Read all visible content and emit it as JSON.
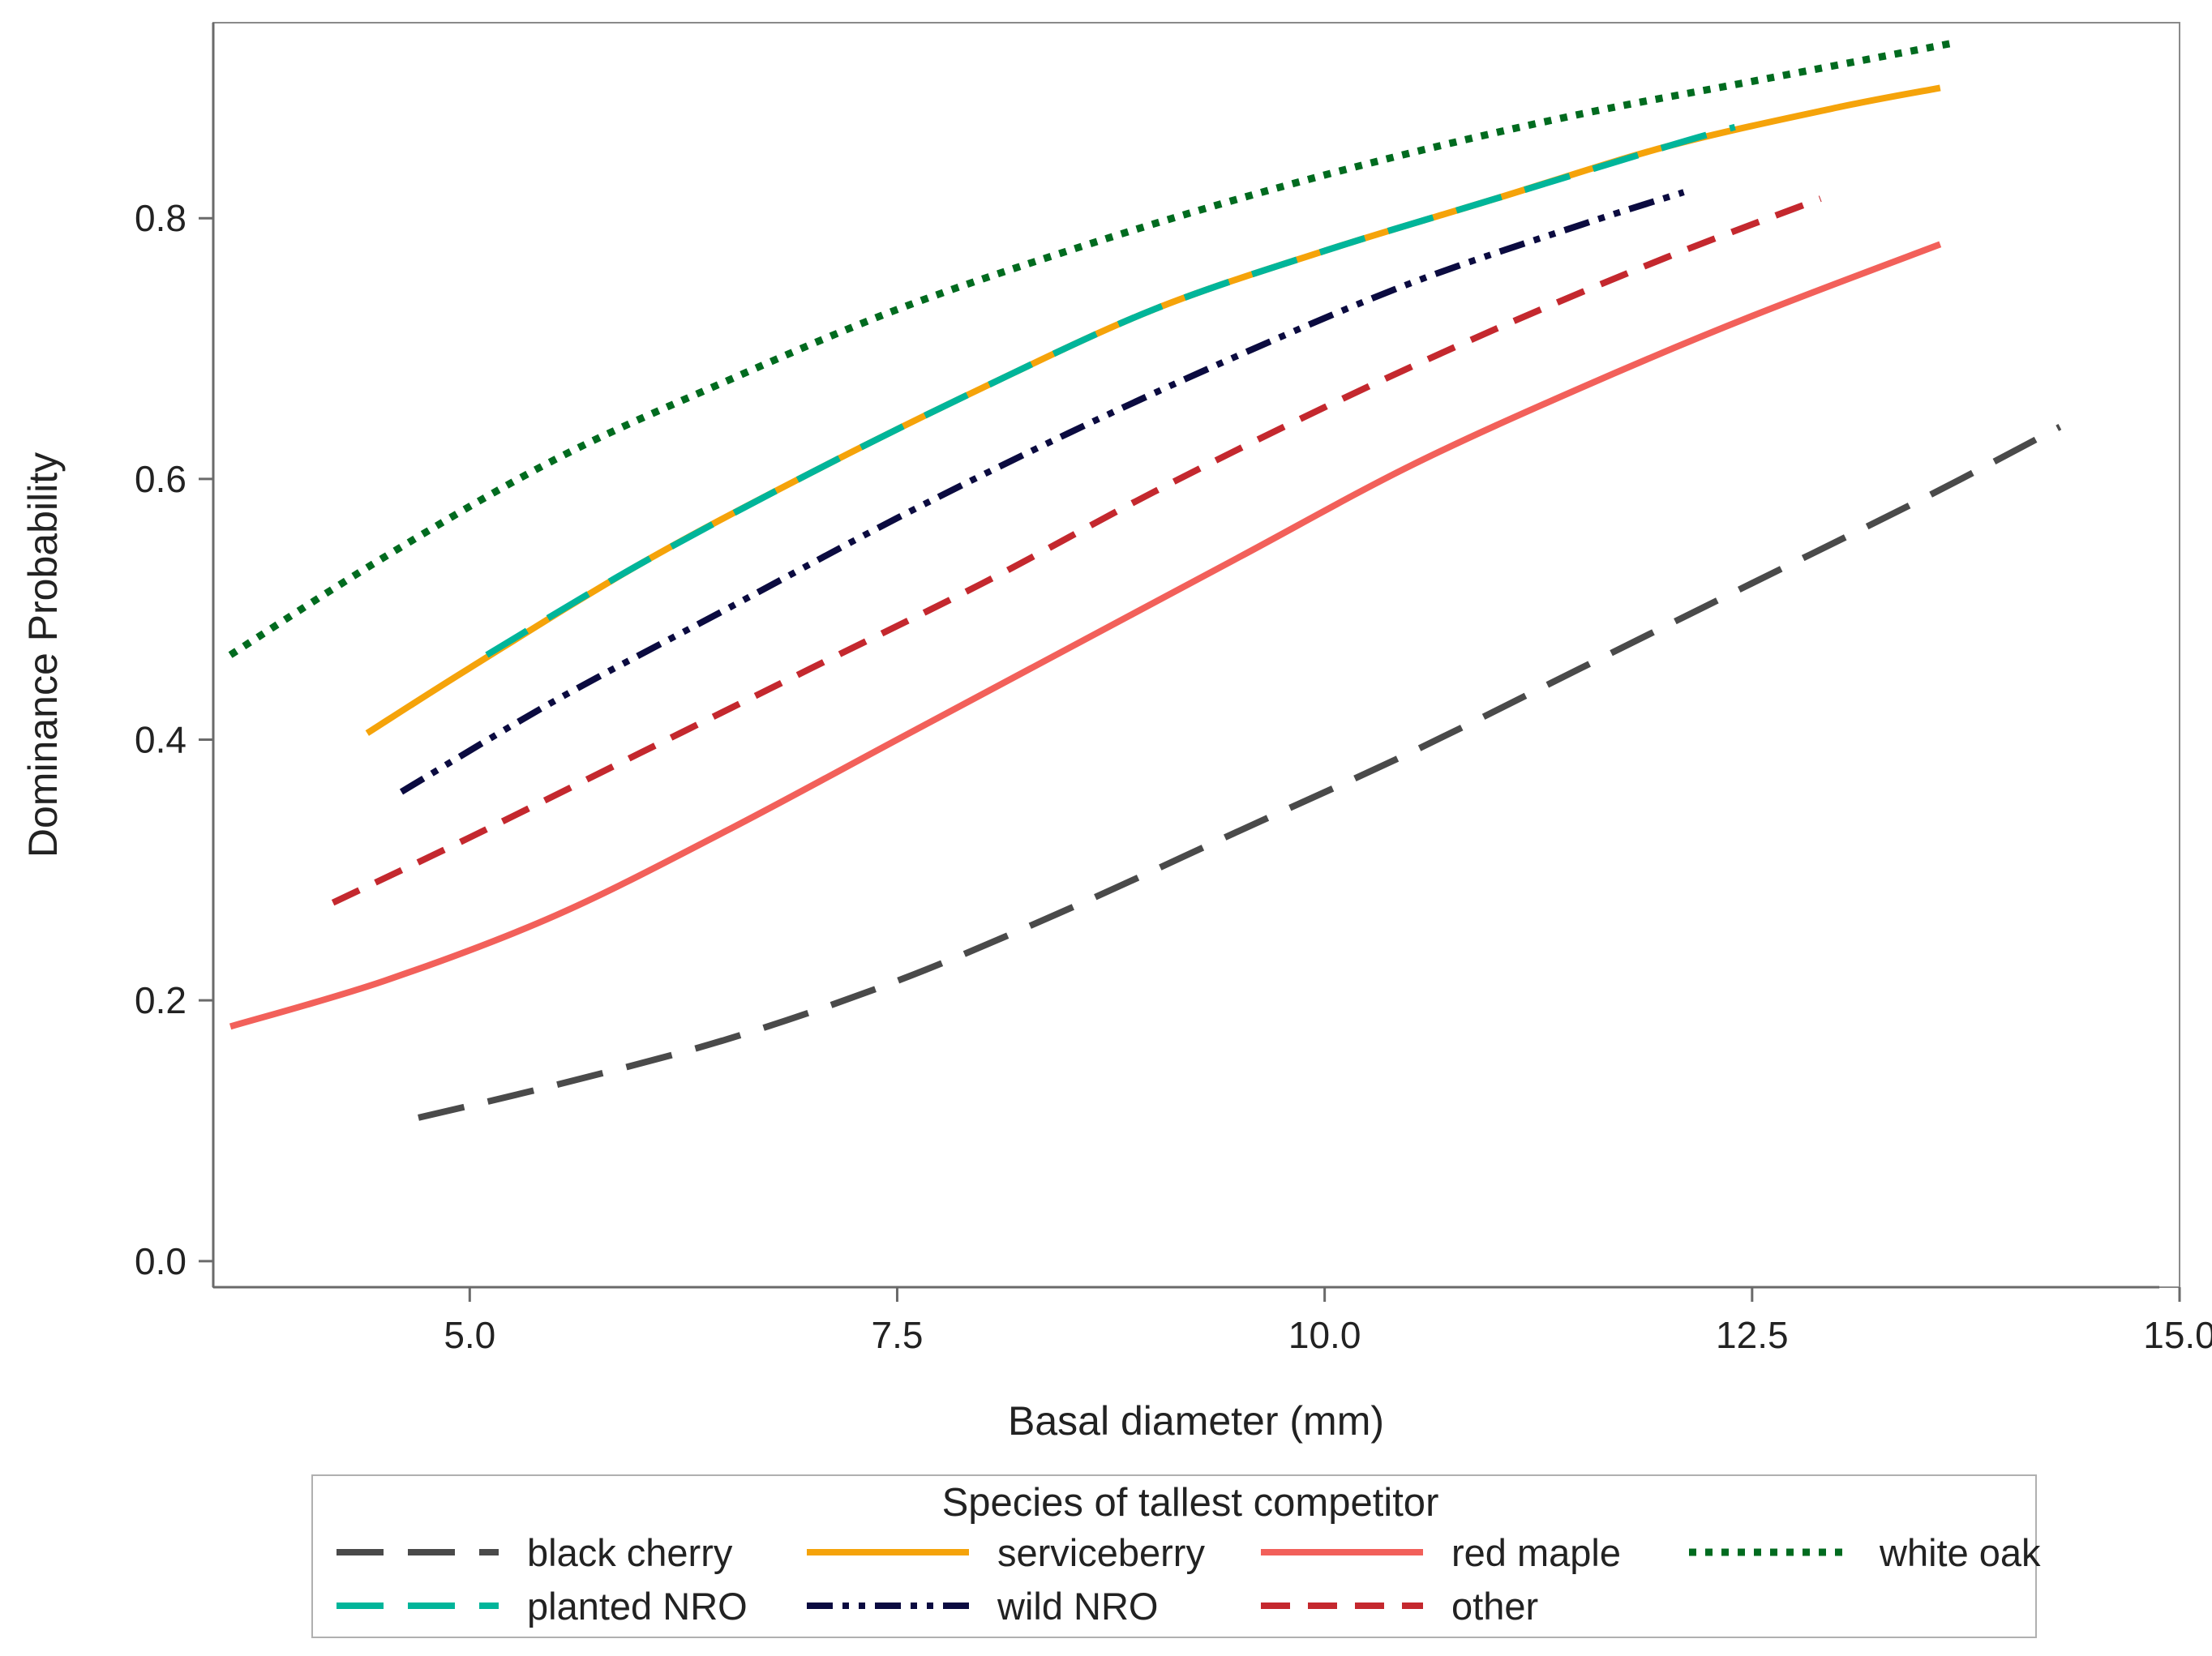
{
  "chart_data": {
    "type": "line",
    "title": "",
    "xlabel": "Basal diameter (mm)",
    "ylabel": "Dominance Probability",
    "xlim": [
      3.5,
      15.0
    ],
    "ylim": [
      -0.02,
      0.95
    ],
    "xticks": [
      5.0,
      7.5,
      10.0,
      12.5,
      15.0
    ],
    "xtick_labels": [
      "5.0",
      "7.5",
      "10.0",
      "12.5",
      "15.0"
    ],
    "yticks": [
      0.0,
      0.2,
      0.4,
      0.6,
      0.8
    ],
    "ytick_labels": [
      "0.0",
      "0.2",
      "0.4",
      "0.6",
      "0.8"
    ],
    "legend": {
      "title": "Species of tallest competitor",
      "placement": "bottom"
    },
    "series": [
      {
        "name": "black cherry",
        "color": "#4a4a4a",
        "dash": "long-dash",
        "x": [
          4.7,
          5.5,
          6.5,
          7.5,
          8.5,
          9.5,
          10.5,
          11.5,
          12.5,
          13.5,
          14.3
        ],
        "y": [
          0.11,
          0.135,
          0.17,
          0.215,
          0.27,
          0.33,
          0.39,
          0.455,
          0.52,
          0.585,
          0.64
        ]
      },
      {
        "name": "serviceberry",
        "color": "#f5a30a",
        "dash": "solid",
        "x": [
          4.4,
          5.0,
          6.0,
          7.0,
          8.0,
          9.0,
          10.0,
          11.0,
          12.0,
          13.0,
          13.6
        ],
        "y": [
          0.405,
          0.455,
          0.535,
          0.605,
          0.67,
          0.73,
          0.775,
          0.815,
          0.855,
          0.885,
          0.9
        ]
      },
      {
        "name": "red maple",
        "color": "#f2605a",
        "dash": "solid",
        "x": [
          3.6,
          4.5,
          5.5,
          6.5,
          7.5,
          8.5,
          9.5,
          10.5,
          11.5,
          12.5,
          13.6
        ],
        "y": [
          0.18,
          0.215,
          0.265,
          0.33,
          0.4,
          0.47,
          0.54,
          0.61,
          0.67,
          0.725,
          0.78
        ]
      },
      {
        "name": "white oak",
        "color": "#006b1f",
        "dash": "dotted",
        "x": [
          3.6,
          4.5,
          5.5,
          6.5,
          7.5,
          8.5,
          9.5,
          10.5,
          11.5,
          12.5,
          13.7
        ],
        "y": [
          0.465,
          0.54,
          0.615,
          0.675,
          0.73,
          0.775,
          0.815,
          0.85,
          0.88,
          0.905,
          0.935
        ]
      },
      {
        "name": "planted NRO",
        "color": "#00b59a",
        "dash": "long-dash",
        "x": [
          5.1,
          6.0,
          7.0,
          8.0,
          9.0,
          10.0,
          11.0,
          12.0,
          12.4
        ],
        "y": [
          0.465,
          0.535,
          0.605,
          0.67,
          0.73,
          0.775,
          0.815,
          0.855,
          0.87
        ]
      },
      {
        "name": "wild NRO",
        "color": "#0b0b40",
        "dash": "dash-dot-dot",
        "x": [
          4.6,
          5.5,
          6.5,
          7.5,
          8.5,
          9.5,
          10.5,
          11.5,
          12.1
        ],
        "y": [
          0.36,
          0.43,
          0.5,
          0.57,
          0.635,
          0.695,
          0.75,
          0.795,
          0.82
        ]
      },
      {
        "name": "other",
        "color": "#c4282e",
        "dash": "dashed",
        "x": [
          4.2,
          5.0,
          6.0,
          7.0,
          8.0,
          9.0,
          10.0,
          11.0,
          12.0,
          12.9
        ],
        "y": [
          0.275,
          0.325,
          0.39,
          0.455,
          0.52,
          0.59,
          0.655,
          0.715,
          0.77,
          0.815
        ]
      }
    ]
  }
}
